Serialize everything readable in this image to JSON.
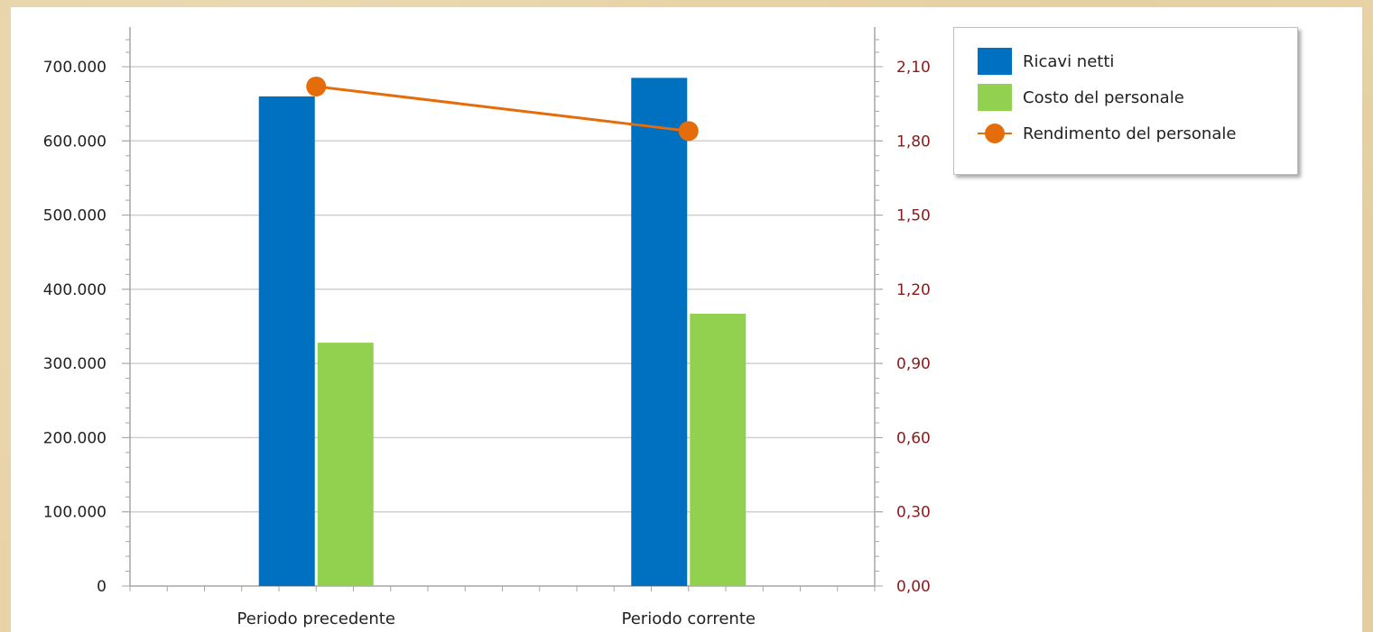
{
  "chart_data": {
    "type": "bar",
    "categories": [
      "Periodo precedente",
      "Periodo corrente"
    ],
    "series": [
      {
        "name": "Ricavi netti",
        "type": "bar",
        "axis": "left",
        "color": "#0070c0",
        "values": [
          660000,
          685000
        ]
      },
      {
        "name": "Costo del personale",
        "type": "bar",
        "axis": "left",
        "color": "#92d050",
        "values": [
          328000,
          367000
        ]
      },
      {
        "name": "Rendimento del personale",
        "type": "line",
        "axis": "right",
        "color": "#e46c0a",
        "values": [
          2.02,
          1.84
        ]
      }
    ],
    "y_left": {
      "lim": [
        0,
        700000
      ],
      "ticks": [
        0,
        100000,
        200000,
        300000,
        400000,
        500000,
        600000,
        700000
      ],
      "tick_labels": [
        "0",
        "100.000",
        "200.000",
        "300.000",
        "400.000",
        "500.000",
        "600.000",
        "700.000"
      ]
    },
    "y_right": {
      "lim": [
        0,
        2.1
      ],
      "ticks": [
        0,
        0.3,
        0.6,
        0.9,
        1.2,
        1.5,
        1.8,
        2.1
      ],
      "tick_labels": [
        "0,00",
        "0,30",
        "0,60",
        "0,90",
        "1,20",
        "1,50",
        "1,80",
        "2,10"
      ]
    },
    "grid": true,
    "legend": "top-right"
  }
}
